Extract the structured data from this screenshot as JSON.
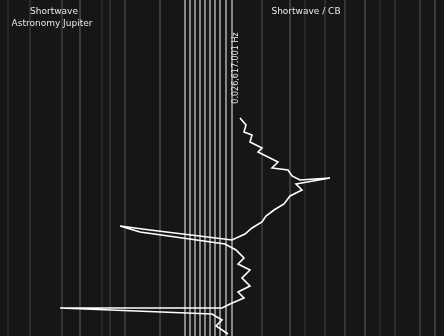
{
  "chart_data": {
    "type": "line",
    "annotations": [
      "Shortwave",
      "Astronomy Jupiter",
      "Shortwave / CB",
      "0.026,617.001 Hz"
    ],
    "x": [
      240,
      246,
      244,
      252,
      250,
      262,
      258,
      270,
      278,
      272,
      288,
      292,
      300,
      330,
      296,
      302,
      290,
      284,
      274,
      266,
      262,
      252,
      245,
      232,
      150,
      120,
      140,
      225,
      236,
      244,
      238,
      250,
      242,
      250,
      238,
      244,
      230,
      222,
      60,
      212,
      222,
      216,
      228
    ],
    "values": [
      218,
      211,
      204,
      201,
      194,
      188,
      184,
      178,
      174,
      168,
      166,
      160,
      156,
      158,
      152,
      146,
      140,
      132,
      126,
      120,
      114,
      108,
      102,
      96,
      106,
      110,
      104,
      92,
      86,
      78,
      72,
      66,
      58,
      50,
      44,
      38,
      32,
      28,
      28,
      22,
      16,
      10,
      2
    ],
    "color": "#ffffff",
    "xlim": [
      0,
      444
    ],
    "ylim": [
      0,
      336
    ],
    "tick_labels": false,
    "grid": false,
    "vertical_lines": [
      8,
      30,
      62,
      80,
      102,
      110,
      125,
      160,
      185,
      190,
      195,
      200,
      205,
      210,
      215,
      220,
      226,
      232,
      262,
      290,
      305,
      325,
      345,
      365,
      380,
      395,
      420,
      435
    ]
  }
}
